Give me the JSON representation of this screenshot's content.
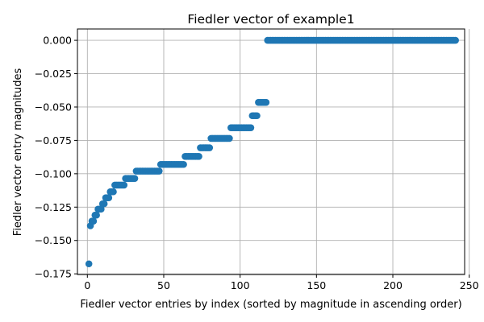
{
  "chart_data": {
    "type": "scatter",
    "title": "Fiedler vector of example1",
    "xlabel": "Fiedler vector entries by index (sorted by magnitude in ascending order)",
    "ylabel": "Fiedler vector entry magnitudes",
    "xlim": [
      -6.5,
      247
    ],
    "ylim": [
      -0.1755,
      0.0085
    ],
    "xticks": [
      0,
      50,
      100,
      150,
      200,
      250
    ],
    "xtick_labels": [
      "0",
      "50",
      "100",
      "150",
      "200",
      "250"
    ],
    "yticks": [
      0.0,
      -0.025,
      -0.05,
      -0.075,
      -0.1,
      -0.125,
      -0.15,
      -0.175
    ],
    "ytick_labels": [
      "0.000",
      "−0.025",
      "−0.050",
      "−0.075",
      "−0.100",
      "−0.125",
      "−0.150",
      "−0.175"
    ],
    "grid": true,
    "marker_color": "#1f77b4",
    "groups": [
      {
        "x_start": 1,
        "x_end": 1,
        "y": -0.1675
      },
      {
        "x_start": 2,
        "x_end": 2,
        "y": -0.139
      },
      {
        "x_start": 3,
        "x_end": 4,
        "y": -0.1355
      },
      {
        "x_start": 5,
        "x_end": 6,
        "y": -0.131
      },
      {
        "x_start": 7,
        "x_end": 9,
        "y": -0.1265
      },
      {
        "x_start": 10,
        "x_end": 11,
        "y": -0.1225
      },
      {
        "x_start": 12,
        "x_end": 14,
        "y": -0.118
      },
      {
        "x_start": 15,
        "x_end": 17,
        "y": -0.1135
      },
      {
        "x_start": 18,
        "x_end": 24,
        "y": -0.1085
      },
      {
        "x_start": 25,
        "x_end": 31,
        "y": -0.1035
      },
      {
        "x_start": 32,
        "x_end": 47,
        "y": -0.098
      },
      {
        "x_start": 48,
        "x_end": 63,
        "y": -0.093
      },
      {
        "x_start": 64,
        "x_end": 73,
        "y": -0.087
      },
      {
        "x_start": 74,
        "x_end": 80,
        "y": -0.0805
      },
      {
        "x_start": 81,
        "x_end": 93,
        "y": -0.0735
      },
      {
        "x_start": 94,
        "x_end": 107,
        "y": -0.0655
      },
      {
        "x_start": 108,
        "x_end": 111,
        "y": -0.0565
      },
      {
        "x_start": 112,
        "x_end": 117,
        "y": -0.0465
      },
      {
        "x_start": 118,
        "x_end": 241,
        "y": 0.0
      }
    ]
  }
}
